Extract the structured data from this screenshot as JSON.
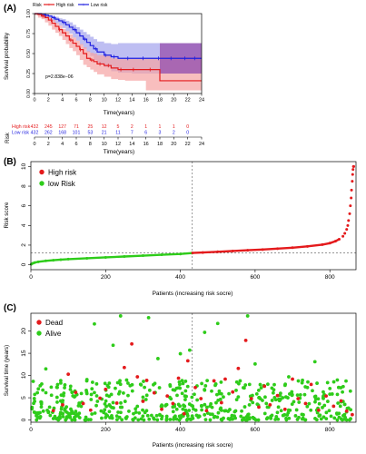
{
  "panels": {
    "a": {
      "label": "(A)",
      "legend": {
        "title": "Risk",
        "items": [
          "High risk",
          "Low risk"
        ]
      },
      "pvalue": "p=2.838e−06",
      "risk_table": {
        "title": "Risk",
        "rows": [
          {
            "name": "High risk",
            "values": [
              "432",
              "245",
              "127",
              "71",
              "25",
              "12",
              "5",
              "2",
              "1",
              "1",
              "1",
              "0"
            ]
          },
          {
            "name": "Low risk",
            "values": [
              "432",
              "262",
              "168",
              "101",
              "53",
              "21",
              "11",
              "7",
              "6",
              "3",
              "2",
              "0"
            ]
          }
        ],
        "xlabel": "Time(years)"
      }
    },
    "b": {
      "label": "(B)"
    },
    "c": {
      "label": "(C)"
    }
  },
  "colors": {
    "high": "#e41a1c",
    "low": "#1f1fe0",
    "green": "#2ecc1a",
    "high_band": "#f5a3a3",
    "low_band": "#a8a8ee",
    "overlap_band": "#9a56b0",
    "axis": "#000000"
  },
  "chart_data": [
    {
      "type": "line",
      "subtype": "kaplan-meier",
      "title": "",
      "xlabel": "Time(years)",
      "ylabel": "Survival probability",
      "xlim": [
        0,
        24
      ],
      "ylim": [
        0,
        1
      ],
      "xticks": [
        0,
        2,
        4,
        6,
        8,
        10,
        12,
        14,
        16,
        18,
        20,
        22,
        24
      ],
      "yticks": [
        0.0,
        0.25,
        0.5,
        0.75,
        1.0
      ],
      "ytick_labels": [
        "0.00",
        "0.25",
        "0.50",
        "0.75",
        "1.00"
      ],
      "series": [
        {
          "name": "High risk",
          "x": [
            0,
            0.5,
            1,
            1.5,
            2,
            2.5,
            3,
            3.5,
            4,
            4.5,
            5,
            5.5,
            6,
            6.5,
            7,
            7.5,
            8,
            8.5,
            9,
            10,
            11,
            12,
            13,
            15,
            16,
            18,
            24
          ],
          "y": [
            1.0,
            0.99,
            0.97,
            0.95,
            0.92,
            0.88,
            0.84,
            0.8,
            0.76,
            0.72,
            0.67,
            0.63,
            0.59,
            0.55,
            0.5,
            0.44,
            0.42,
            0.4,
            0.37,
            0.35,
            0.32,
            0.3,
            0.3,
            0.3,
            0.3,
            0.16,
            0.16
          ],
          "ci_low": [
            1.0,
            0.98,
            0.95,
            0.93,
            0.89,
            0.85,
            0.8,
            0.76,
            0.72,
            0.67,
            0.62,
            0.57,
            0.53,
            0.48,
            0.42,
            0.36,
            0.33,
            0.3,
            0.27,
            0.24,
            0.21,
            0.18,
            0.17,
            0.16,
            0.16,
            0.04,
            0.04
          ],
          "ci_high": [
            1.0,
            1.0,
            0.99,
            0.97,
            0.95,
            0.92,
            0.88,
            0.85,
            0.81,
            0.78,
            0.74,
            0.7,
            0.66,
            0.62,
            0.58,
            0.53,
            0.51,
            0.5,
            0.48,
            0.47,
            0.44,
            0.43,
            0.43,
            0.43,
            0.43,
            0.46,
            0.46
          ]
        },
        {
          "name": "Low risk",
          "x": [
            0,
            0.5,
            1,
            1.5,
            2,
            2.5,
            3,
            3.5,
            4,
            4.5,
            5,
            5.5,
            6,
            6.5,
            7,
            7.5,
            8,
            8.5,
            9,
            10,
            11,
            12,
            14,
            16,
            24
          ],
          "y": [
            1.0,
            1.0,
            0.99,
            0.98,
            0.97,
            0.95,
            0.93,
            0.91,
            0.89,
            0.86,
            0.83,
            0.8,
            0.76,
            0.72,
            0.68,
            0.64,
            0.6,
            0.56,
            0.52,
            0.48,
            0.46,
            0.44,
            0.44,
            0.44,
            0.44
          ],
          "ci_low": [
            1.0,
            1.0,
            0.98,
            0.97,
            0.95,
            0.93,
            0.9,
            0.88,
            0.85,
            0.82,
            0.78,
            0.75,
            0.7,
            0.66,
            0.61,
            0.56,
            0.52,
            0.47,
            0.42,
            0.37,
            0.33,
            0.28,
            0.26,
            0.25,
            0.25
          ],
          "ci_high": [
            1.0,
            1.0,
            1.0,
            0.99,
            0.98,
            0.97,
            0.96,
            0.94,
            0.93,
            0.91,
            0.89,
            0.86,
            0.83,
            0.8,
            0.77,
            0.74,
            0.71,
            0.68,
            0.65,
            0.63,
            0.62,
            0.63,
            0.63,
            0.63,
            0.63
          ]
        }
      ],
      "censor_marks": {
        "High risk": [
          1.2,
          2.4,
          3.6,
          5.2,
          6.6,
          8.2,
          9.4,
          10.6,
          12.4,
          14.2,
          16.6
        ],
        "Low risk": [
          1.6,
          2.8,
          4.2,
          5.8,
          7.2,
          8.8,
          10.2,
          11.4,
          13.4,
          15.6,
          17.8,
          19.6,
          21.6,
          23.0
        ]
      },
      "legend": "top"
    },
    {
      "type": "scatter",
      "subtype": "risk score curve",
      "xlabel": "Patients (increasing risk socre)",
      "ylabel": "Risk score",
      "xlim": [
        0,
        870
      ],
      "ylim": [
        -0.5,
        10.5
      ],
      "xticks": [
        0,
        200,
        400,
        600,
        800
      ],
      "yticks": [
        0,
        2,
        4,
        6,
        8,
        10
      ],
      "cutoff_x": 432,
      "cutoff_y": 1.2,
      "series": [
        {
          "name": "High risk",
          "x": [
            432,
            460,
            500,
            540,
            580,
            620,
            660,
            700,
            740,
            780,
            800,
            815,
            825,
            835,
            840,
            845,
            848,
            850,
            853,
            855,
            857,
            858,
            860,
            861,
            862,
            863,
            864
          ],
          "y": [
            1.2,
            1.25,
            1.32,
            1.4,
            1.48,
            1.55,
            1.64,
            1.74,
            1.87,
            2.05,
            2.2,
            2.4,
            2.6,
            2.9,
            3.2,
            3.6,
            4.0,
            4.5,
            5.2,
            6.0,
            6.8,
            7.6,
            8.5,
            9.2,
            9.7,
            10.0,
            10.0
          ]
        },
        {
          "name": "low Risk",
          "x": [
            1,
            5,
            10,
            20,
            40,
            60,
            80,
            100,
            150,
            200,
            250,
            300,
            350,
            400,
            431
          ],
          "y": [
            0.05,
            0.15,
            0.22,
            0.3,
            0.4,
            0.46,
            0.52,
            0.57,
            0.66,
            0.75,
            0.84,
            0.93,
            1.02,
            1.1,
            1.19
          ]
        }
      ],
      "legend": "top-left"
    },
    {
      "type": "scatter",
      "subtype": "survival status",
      "xlabel": "Patients (increasing risk socre)",
      "ylabel": "Survival time (years)",
      "xlim": [
        0,
        870
      ],
      "ylim": [
        -0.5,
        24
      ],
      "xticks": [
        0,
        200,
        400,
        600,
        800
      ],
      "yticks": [
        0,
        5,
        10,
        15,
        20
      ],
      "cutoff_x": 432,
      "series": [
        {
          "name": "Dead",
          "x": [
            60,
            85,
            100,
            120,
            140,
            160,
            185,
            200,
            230,
            250,
            270,
            285,
            300,
            310,
            330,
            350,
            365,
            380,
            395,
            410,
            420,
            440,
            455,
            470,
            490,
            510,
            520,
            540,
            555,
            575,
            590,
            610,
            625,
            640,
            660,
            680,
            700,
            715,
            735,
            750,
            770,
            790,
            810,
            830,
            845,
            860
          ],
          "y": [
            2.1,
            3.4,
            10.3,
            6.2,
            3.7,
            2.2,
            4.9,
            6.9,
            3.8,
            11.8,
            17.1,
            9.7,
            4.2,
            8.9,
            6.1,
            2.4,
            5.4,
            3.7,
            9.4,
            1.4,
            13.3,
            7.3,
            4.8,
            2.1,
            8.8,
            3.9,
            9.2,
            6.3,
            11.6,
            17.9,
            4.8,
            2.9,
            7.6,
            3.4,
            5.5,
            2.4,
            9.2,
            4.8,
            3.7,
            8.0,
            2.2,
            5.4,
            3.1,
            4.3,
            2.0,
            1.2
          ]
        },
        {
          "name": "Alive",
          "x": [
            10,
            25,
            40,
            50,
            70,
            80,
            95,
            110,
            130,
            150,
            170,
            190,
            210,
            220,
            240,
            260,
            280,
            295,
            315,
            340,
            360,
            385,
            400,
            425,
            445,
            465,
            480,
            500,
            530,
            560,
            580,
            600,
            630,
            650,
            670,
            690,
            720,
            740,
            760,
            780,
            800,
            820,
            840,
            855
          ],
          "y": [
            4.2,
            7.7,
            11.5,
            2.9,
            5.1,
            8.3,
            1.8,
            6.2,
            3.3,
            9.1,
            21.6,
            4.7,
            1.9,
            16.8,
            23.4,
            5.5,
            2.5,
            7.9,
            23.0,
            13.8,
            3.2,
            6.7,
            14.9,
            15.7,
            4.5,
            19.7,
            1.3,
            21.7,
            5.9,
            8.8,
            23.4,
            12.6,
            3.7,
            6.8,
            2.1,
            9.7,
            4.9,
            7.3,
            13.1,
            2.8,
            5.8,
            9.0,
            3.5,
            6.5
          ]
        }
      ],
      "legend": "top-left"
    }
  ]
}
